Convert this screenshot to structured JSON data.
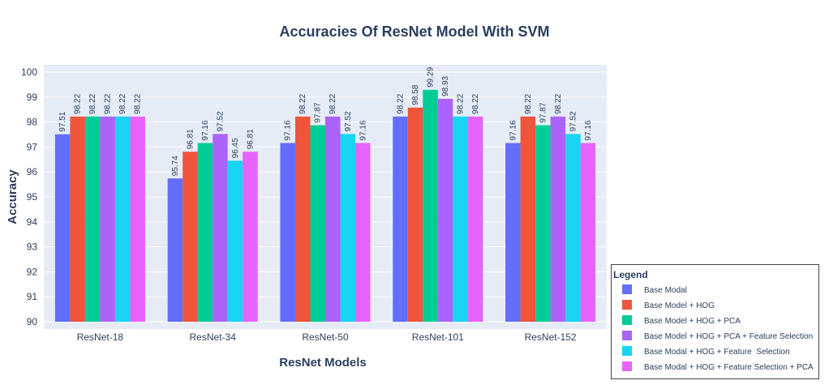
{
  "chart_data": {
    "type": "bar",
    "title": "Accuracies Of ResNet Model With SVM",
    "xlabel": "ResNet Models",
    "ylabel": "Accuracy",
    "ylim": [
      90,
      100
    ],
    "yticks": [
      "90",
      "91",
      "92",
      "93",
      "94",
      "95",
      "96",
      "97",
      "98",
      "99",
      "100"
    ],
    "categories": [
      "ResNet-18",
      "ResNet-34",
      "ResNet-50",
      "ResNet-101",
      "ResNet-152"
    ],
    "grid": true,
    "legend": {
      "title": "Legend",
      "placement": "bottom-right"
    },
    "series": [
      {
        "name": "Base Modal",
        "color": "#636efa",
        "values": [
          97.51,
          95.74,
          97.16,
          98.22,
          97.16
        ],
        "labels": [
          "97.51",
          "95.74",
          "97.16",
          "98.22",
          "97.16"
        ]
      },
      {
        "name": "Base Model + HOG",
        "color": "#ef553b",
        "values": [
          98.22,
          96.81,
          98.22,
          98.58,
          98.22
        ],
        "labels": [
          "98.22",
          "96.81",
          "98.22",
          "98.58",
          "98.22"
        ]
      },
      {
        "name": "Base Model + HOG + PCA",
        "color": "#00cc96",
        "values": [
          98.22,
          97.16,
          97.87,
          99.29,
          97.87
        ],
        "labels": [
          "98.22",
          "97.16",
          "97.87",
          "99.29",
          "97.87"
        ]
      },
      {
        "name": "Base Model + HOG + PCA + Feature Selection",
        "color": "#ab63fa",
        "values": [
          98.22,
          97.52,
          98.22,
          98.93,
          98.22
        ],
        "labels": [
          "98.22",
          "97.52",
          "98.22",
          "98.93",
          "98.22"
        ]
      },
      {
        "name": "Base Modal + HOG + Feature  Selection",
        "color": "#19d3f3",
        "values": [
          98.22,
          96.45,
          97.52,
          98.22,
          97.52
        ],
        "labels": [
          "98.22",
          "96.45",
          "97.52",
          "98.22",
          "97.52"
        ]
      },
      {
        "name": "Base Modal + HOG + Feature Selection + PCA",
        "color": "#e763fa",
        "values": [
          98.22,
          96.81,
          97.16,
          98.22,
          97.16
        ],
        "labels": [
          "98.22",
          "96.81",
          "97.16",
          "98.22",
          "97.16"
        ]
      }
    ]
  }
}
